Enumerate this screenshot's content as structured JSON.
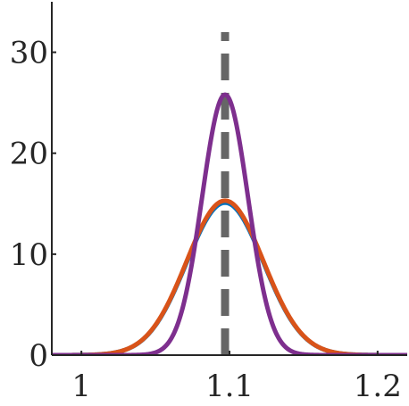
{
  "chart_data": {
    "type": "line",
    "title": "",
    "xlabel": "",
    "ylabel": "",
    "xlim": [
      0.98,
      1.22
    ],
    "ylim": [
      0,
      35
    ],
    "x_ticks": [
      1,
      1.1,
      1.2
    ],
    "x_tick_labels": [
      "1",
      "1.1",
      "1.2"
    ],
    "y_ticks": [
      0,
      10,
      20,
      30
    ],
    "y_tick_labels": [
      "0",
      "10",
      "20",
      "30"
    ],
    "grid": false,
    "legend": "none",
    "vertical_reference_line": {
      "x": 1.097,
      "y_range": [
        0,
        32
      ],
      "style": "dashed",
      "color": "#666666"
    },
    "series": [
      {
        "color": "#0072BD",
        "curve": "gaussian",
        "mean": 1.097,
        "std": 0.026,
        "peak": 15.1
      },
      {
        "color": "#D95319",
        "curve": "gaussian",
        "mean": 1.097,
        "std": 0.026,
        "peak": 15.3
      },
      {
        "color": "#7E2F8E",
        "curve": "gaussian",
        "mean": 1.097,
        "std": 0.0155,
        "peak": 25.8
      }
    ]
  }
}
